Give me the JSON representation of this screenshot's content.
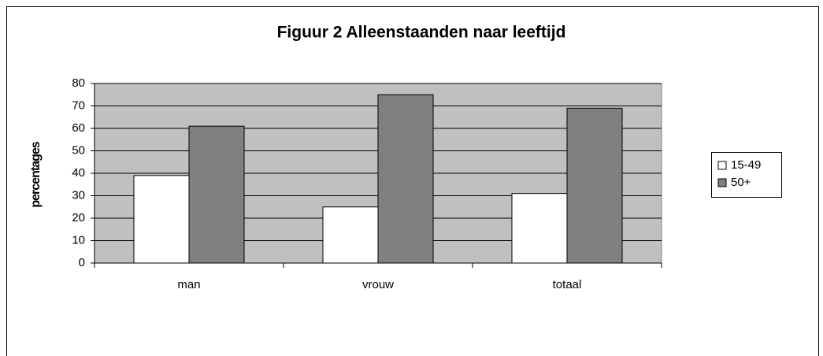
{
  "chart_data": {
    "type": "bar",
    "title": "Figuur 2 Alleenstaanden naar leeftijd",
    "y_label": "percentages",
    "categories": [
      "man",
      "vrouw",
      "totaal"
    ],
    "series": [
      {
        "name": "15-49",
        "color": "#ffffff",
        "values": [
          39,
          25,
          31
        ]
      },
      {
        "name": "50+",
        "color": "#808080",
        "values": [
          61,
          75,
          69
        ]
      }
    ],
    "ylim": [
      0,
      80
    ],
    "yticks": [
      0,
      10,
      20,
      30,
      40,
      50,
      60,
      70,
      80
    ],
    "grid": true,
    "legend": "right"
  }
}
